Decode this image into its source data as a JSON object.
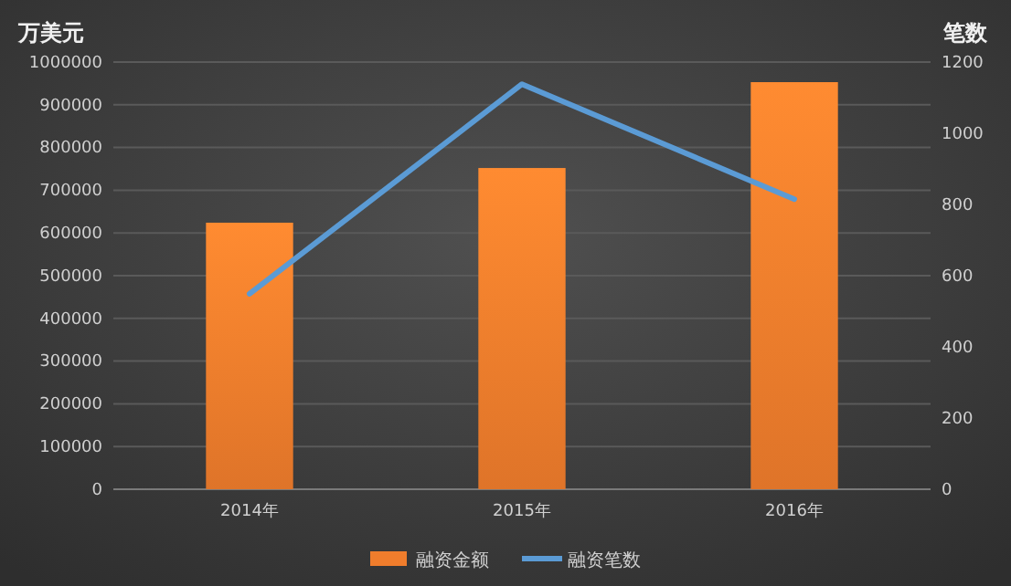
{
  "chart_data": {
    "type": "bar",
    "categories": [
      "2014年",
      "2015年",
      "2016年"
    ],
    "ylabel": "万美元",
    "y2label": "笔数",
    "series": [
      {
        "name": "融资金额",
        "color": "#f07d2c",
        "values": [
          624000,
          752000,
          953000
        ]
      },
      {
        "name": "融资笔数",
        "type": "line",
        "axis": "y2",
        "color": "#5b9bd5",
        "values": [
          549,
          1138,
          815
        ]
      }
    ],
    "ylim": [
      0,
      1000000
    ],
    "yticks": [
      0,
      100000,
      200000,
      300000,
      400000,
      500000,
      600000,
      700000,
      800000,
      900000,
      1000000
    ],
    "y2lim": [
      0,
      1200
    ],
    "y2ticks": [
      0,
      200,
      400,
      600,
      800,
      1000,
      1200
    ],
    "grid": "y",
    "legend": "bottom",
    "marker": "none",
    "line_style": "solid"
  }
}
